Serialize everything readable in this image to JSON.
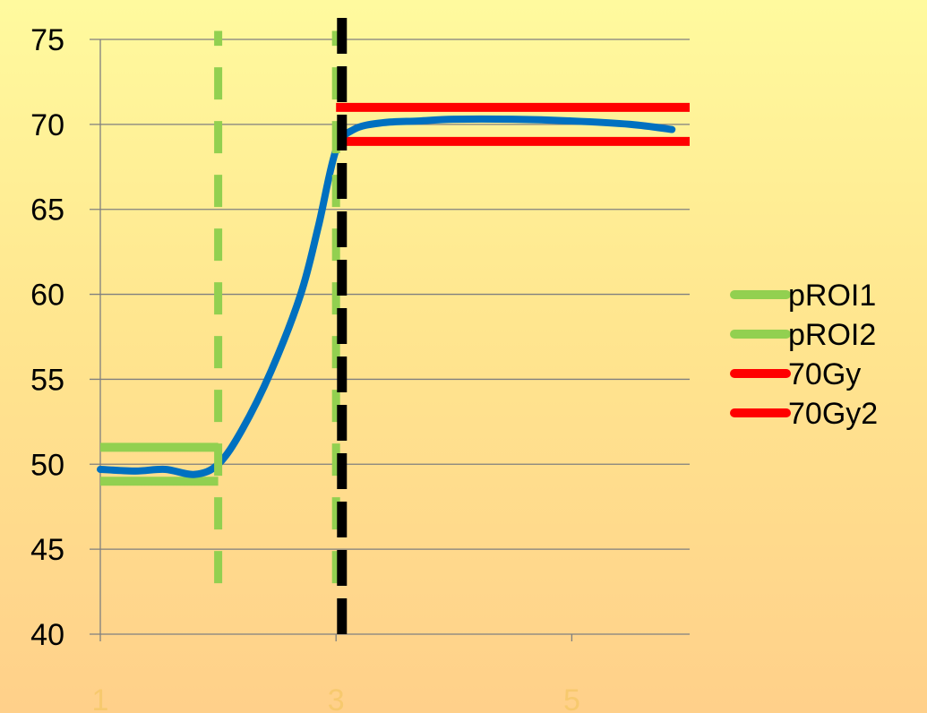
{
  "chart_data": {
    "type": "line",
    "xlim": [
      1,
      6
    ],
    "ylim": [
      40,
      75
    ],
    "y_ticks": [
      40,
      45,
      50,
      55,
      60,
      65,
      70,
      75
    ],
    "x_tick_labels": [
      {
        "x": 1,
        "label": "1"
      },
      {
        "x": 3,
        "label": "3"
      },
      {
        "x": 5,
        "label": "5"
      }
    ],
    "grid": "horizontal",
    "legend_position": "right",
    "series": [
      {
        "name": "pROI1",
        "color": "#92d050",
        "style": "solid",
        "points": [
          [
            1,
            51
          ],
          [
            2,
            51
          ]
        ]
      },
      {
        "name": "pROI2",
        "color": "#92d050",
        "style": "solid",
        "points": [
          [
            1,
            49
          ],
          [
            2,
            49
          ]
        ]
      },
      {
        "name": "70Gy",
        "color": "#ff0000",
        "style": "solid",
        "points": [
          [
            3,
            71
          ],
          [
            6,
            71
          ]
        ]
      },
      {
        "name": "70Gy2",
        "color": "#ff0000",
        "style": "solid",
        "points": [
          [
            3,
            69
          ],
          [
            6,
            69
          ]
        ]
      }
    ],
    "unlabeled_series": [
      {
        "color": "#0070c0",
        "style": "solid",
        "points": [
          [
            1.0,
            49.7
          ],
          [
            1.3,
            49.6
          ],
          [
            1.55,
            49.7
          ],
          [
            1.8,
            49.4
          ],
          [
            2.0,
            50.0
          ],
          [
            2.2,
            52.0
          ],
          [
            2.45,
            55.5
          ],
          [
            2.7,
            60.0
          ],
          [
            2.85,
            64.0
          ],
          [
            3.0,
            68.5
          ],
          [
            3.15,
            69.7
          ],
          [
            3.4,
            70.1
          ],
          [
            3.7,
            70.2
          ],
          [
            4.0,
            70.3
          ],
          [
            4.5,
            70.3
          ],
          [
            5.0,
            70.2
          ],
          [
            5.5,
            70.0
          ],
          [
            5.85,
            69.7
          ]
        ]
      }
    ],
    "vertical_lines": [
      {
        "x": 2,
        "y_from": 43,
        "y_to": 75.5,
        "color": "#92d050",
        "style": "dashed"
      },
      {
        "x": 3,
        "y_from": 43,
        "y_to": 75.5,
        "color": "#92d050",
        "style": "dashed"
      },
      {
        "x": 3.05,
        "y_from": 40,
        "y_to": 77,
        "color": "#000000",
        "style": "dashed"
      }
    ]
  }
}
